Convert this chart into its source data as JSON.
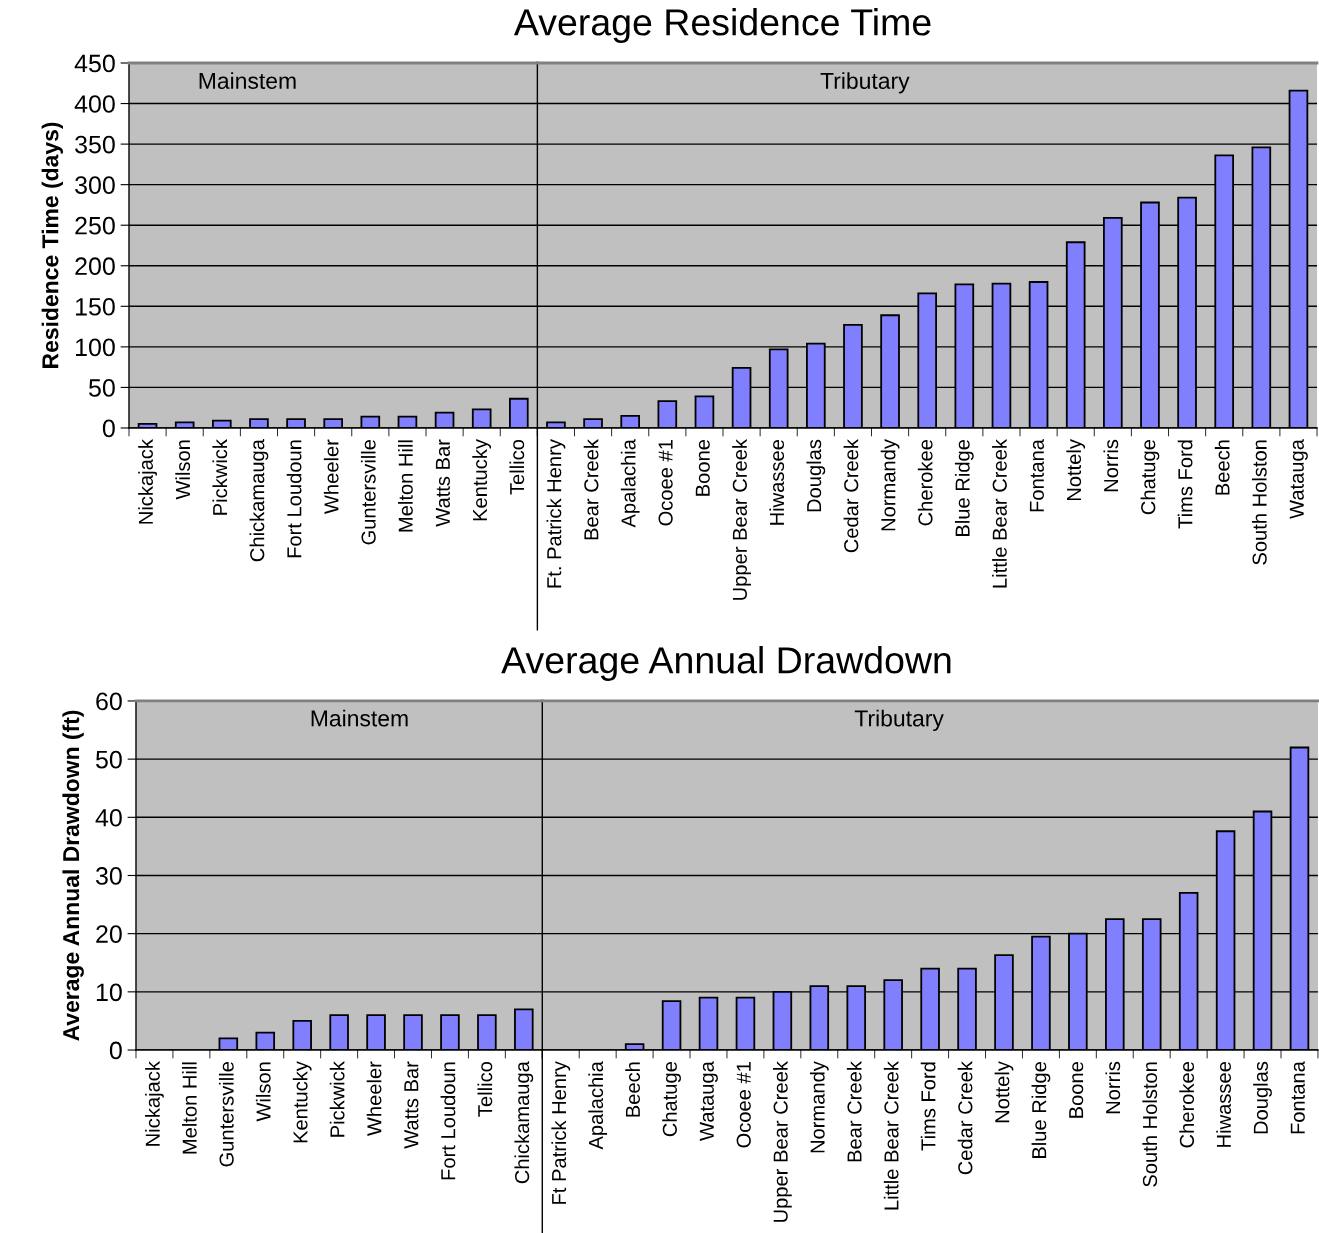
{
  "chart_data": [
    {
      "type": "bar",
      "ylabel": "Residence Time (days)",
      "annotations": [
        "Mainstem"
      ],
      "color": "#8080ff",
      "grid": "y",
      "ylim": [
        0,
        450
      ],
      "yticks": [
        0,
        50,
        100,
        150,
        200,
        250,
        300,
        350,
        400,
        450
      ],
      "categories": [
        "Nickajack",
        "Wilson",
        "Pickwick",
        "Chickamauga",
        "Fort Loudoun",
        "Wheeler",
        "Guntersville",
        "Melton Hill",
        "Watts Bar",
        "Kentucky",
        "Tellico"
      ],
      "values": [
        5,
        7,
        9,
        11,
        11,
        11,
        14,
        14,
        19,
        23,
        36
      ]
    },
    {
      "type": "bar",
      "title": "Average Residence Time",
      "annotations": [
        "Tributary"
      ],
      "color": "#8080ff",
      "grid": "y",
      "ylim": [
        0,
        450
      ],
      "yticks": [
        0,
        50,
        100,
        150,
        200,
        250,
        300,
        350,
        400,
        450
      ],
      "tick_labels": "x",
      "categories": [
        "Ft. Patrick Henry",
        "Bear Creek",
        "Apalachia",
        "Ocoee #1",
        "Boone",
        "Upper Bear Creek",
        "Hiwassee",
        "Douglas",
        "Cedar Creek",
        "Normandy",
        "Cherokee",
        "Blue Ridge",
        "Little Bear Creek",
        "Fontana",
        "Nottely",
        "Norris",
        "Chatuge",
        "Tims Ford",
        "Beech",
        "South Holston",
        "Watauga"
      ],
      "values": [
        7,
        11,
        15,
        33,
        39,
        74,
        97,
        104,
        127,
        139,
        166,
        177,
        178,
        180,
        229,
        259,
        278,
        284,
        336,
        346,
        416
      ]
    },
    {
      "type": "bar",
      "ylabel": "Average Annual Drawdown (ft)",
      "annotations": [
        "Mainstem"
      ],
      "color": "#8080ff",
      "grid": "y",
      "ylim": [
        0,
        60
      ],
      "yticks": [
        0,
        10,
        20,
        30,
        40,
        50,
        60
      ],
      "categories": [
        "Nickajack",
        "Melton Hill",
        "Guntersville",
        "Wilson",
        "Kentucky",
        "Pickwick",
        "Wheeler",
        "Watts Bar",
        "Fort Loudoun",
        "Tellico",
        "Chickamauga"
      ],
      "values": [
        null,
        null,
        2,
        3,
        5,
        6,
        6,
        6,
        6,
        6,
        7
      ]
    },
    {
      "type": "bar",
      "title": "Average Annual Drawdown",
      "annotations": [
        "Tributary"
      ],
      "color": "#8080ff",
      "grid": "y",
      "ylim": [
        0,
        60
      ],
      "yticks": [
        0,
        10,
        20,
        30,
        40,
        50,
        60
      ],
      "tick_labels": "x",
      "categories": [
        "Ft Patrick Henry",
        "Apalachia",
        "Beech",
        "Chatuge",
        "Watauga",
        "Ocoee #1",
        "Upper Bear Creek",
        "Normandy",
        "Bear Creek",
        "Little Bear Creek",
        "Tims Ford",
        "Cedar Creek",
        "Nottely",
        "Blue Ridge",
        "Boone",
        "Norris",
        "South Holston",
        "Cherokee",
        "Hiwassee",
        "Douglas",
        "Fontana"
      ],
      "values": [
        null,
        null,
        1,
        8.4,
        9,
        9,
        10,
        11,
        11,
        12,
        14,
        14,
        16.3,
        19.5,
        20,
        22.5,
        22.5,
        27,
        37.6,
        41,
        52
      ]
    }
  ]
}
